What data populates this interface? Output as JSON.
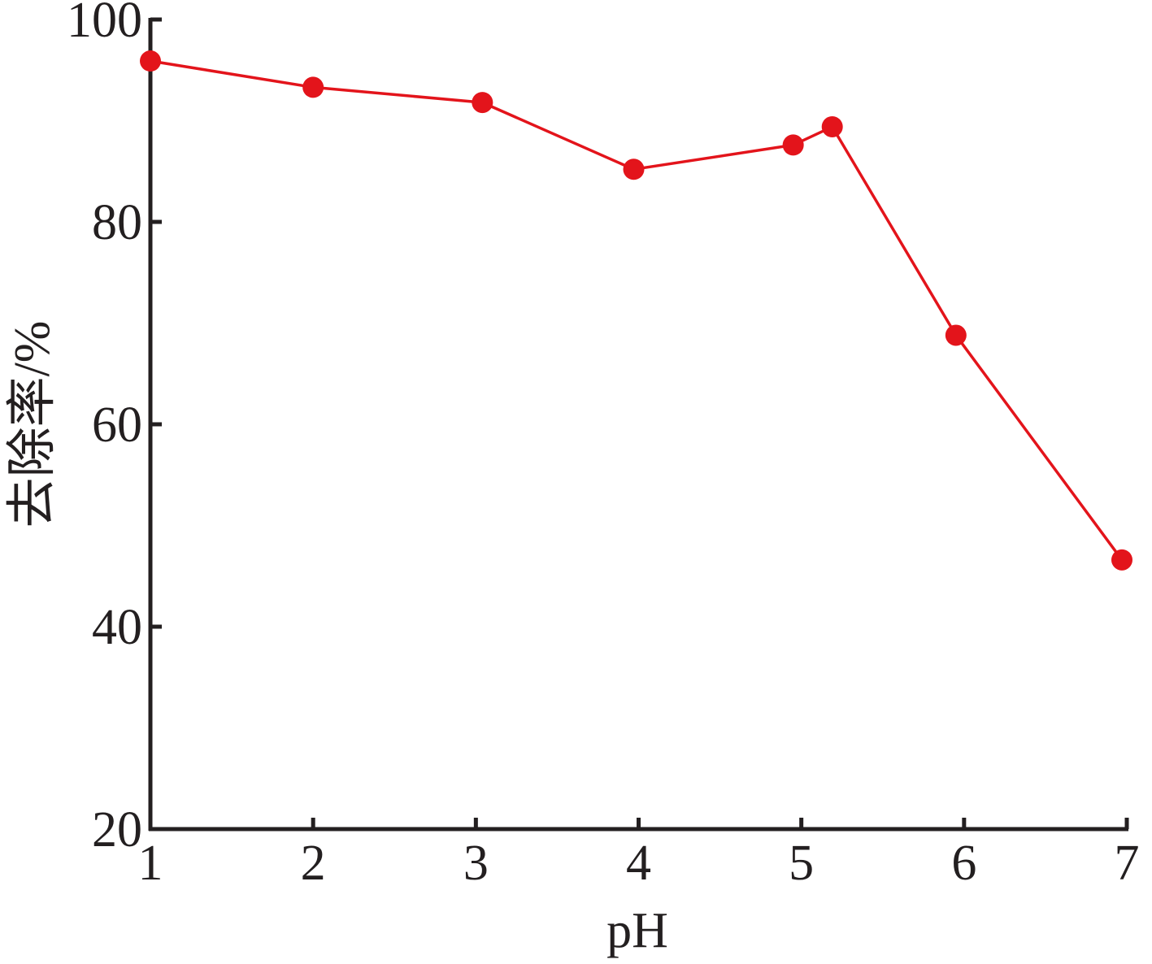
{
  "chart_data": {
    "type": "line",
    "title": "",
    "xlabel": "pH",
    "ylabel": "去除率/%",
    "xlim": [
      1,
      7
    ],
    "ylim": [
      20,
      100
    ],
    "x_ticks": [
      "1",
      "2",
      "3",
      "4",
      "5",
      "6",
      "7"
    ],
    "y_ticks": [
      "20",
      "40",
      "60",
      "80",
      "100"
    ],
    "grid": false,
    "legend": "none",
    "series": [
      {
        "color": "#e3141b",
        "marker": "circle",
        "x": [
          1.0,
          2.0,
          3.04,
          3.97,
          4.95,
          5.19,
          5.95,
          6.97
        ],
        "y": [
          95.9,
          93.3,
          91.8,
          85.2,
          87.6,
          89.4,
          68.8,
          46.6
        ]
      }
    ]
  },
  "colors": {
    "axis": "#231f20",
    "series": "#e3141b",
    "background": "#ffffff"
  }
}
